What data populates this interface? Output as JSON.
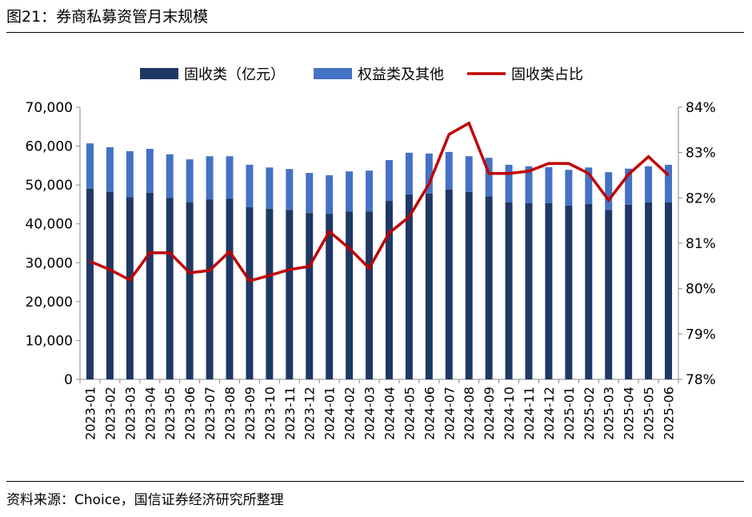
{
  "title": "图21：券商私募资管月末规模",
  "source": "资料来源：Choice，国信证券经济研究所整理",
  "chart_data": {
    "type": "bar+line",
    "legend_position": "top",
    "categories": [
      "2023-01",
      "2023-02",
      "2023-03",
      "2023-04",
      "2023-05",
      "2023-06",
      "2023-07",
      "2023-08",
      "2023-09",
      "2023-10",
      "2023-11",
      "2023-12",
      "2024-01",
      "2024-02",
      "2024-03",
      "2024-04",
      "2024-05",
      "2024-06",
      "2024-07",
      "2024-08",
      "2024-09",
      "2024-10",
      "2024-11",
      "2024-12",
      "2025-01",
      "2025-02",
      "2025-03",
      "2025-04",
      "2025-05",
      "2025-06"
    ],
    "series": [
      {
        "name": "固收类（亿元）",
        "type": "stacked-bar",
        "axis": "left",
        "color": "#1f3864",
        "values": [
          49000,
          48200,
          46900,
          48000,
          46700,
          45500,
          46300,
          46500,
          44300,
          43900,
          43600,
          42800,
          42600,
          43200,
          43200,
          45900,
          47600,
          47800,
          48800,
          48200,
          47100,
          45500,
          45300,
          45300,
          44700,
          45100,
          43600,
          44900,
          45500,
          45500
        ]
      },
      {
        "name": "权益类及其他",
        "type": "stacked-bar",
        "axis": "left",
        "color": "#4472c4",
        "values": [
          11700,
          11500,
          11800,
          11300,
          11200,
          11100,
          11100,
          10900,
          10900,
          10600,
          10500,
          10300,
          9900,
          10300,
          10500,
          10500,
          10700,
          10300,
          9700,
          9200,
          9900,
          9700,
          9500,
          9300,
          9200,
          9400,
          9700,
          9300,
          9300,
          9700
        ]
      },
      {
        "name": "固收类占比",
        "type": "line",
        "axis": "right",
        "color": "#c00000",
        "values": [
          80.6,
          80.42,
          80.19,
          80.79,
          80.79,
          80.35,
          80.4,
          80.82,
          80.17,
          80.29,
          80.42,
          80.49,
          81.26,
          80.89,
          80.45,
          81.23,
          81.58,
          82.31,
          83.4,
          83.65,
          82.54,
          82.54,
          82.59,
          82.76,
          82.76,
          82.54,
          81.95,
          82.52,
          82.91,
          82.5
        ]
      }
    ],
    "left_axis": {
      "ylim": [
        0,
        70000
      ],
      "ticks": [
        "0",
        "10,000",
        "20,000",
        "30,000",
        "40,000",
        "50,000",
        "60,000",
        "70,000"
      ]
    },
    "right_axis": {
      "ylim": [
        78,
        84
      ],
      "ticks": [
        "78%",
        "79%",
        "80%",
        "81%",
        "82%",
        "83%",
        "84%"
      ]
    },
    "grid": false
  }
}
